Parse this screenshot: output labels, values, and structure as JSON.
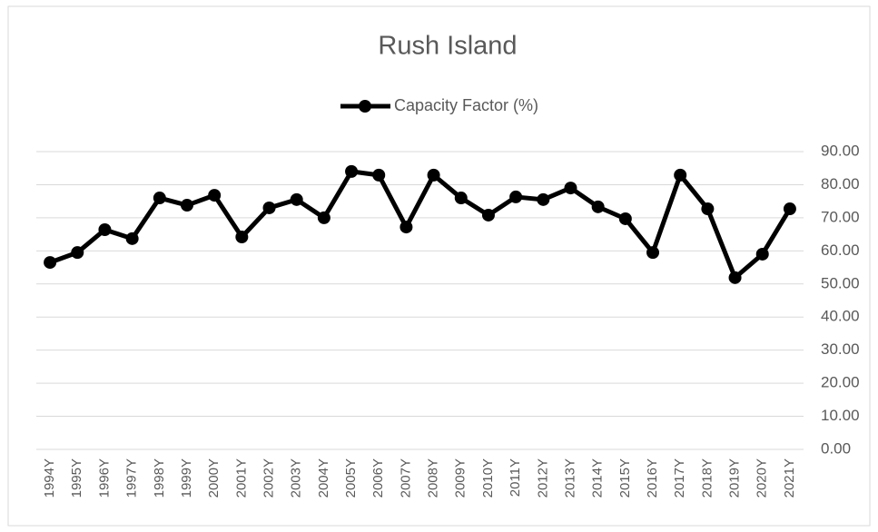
{
  "chart_data": {
    "type": "line",
    "title": "Rush Island",
    "categories": [
      "1994Y",
      "1995Y",
      "1996Y",
      "1997Y",
      "1998Y",
      "1999Y",
      "2000Y",
      "2001Y",
      "2002Y",
      "2003Y",
      "2004Y",
      "2005Y",
      "2006Y",
      "2007Y",
      "2008Y",
      "2009Y",
      "2010Y",
      "2011Y",
      "2012Y",
      "2013Y",
      "2014Y",
      "2015Y",
      "2016Y",
      "2017Y",
      "2018Y",
      "2019Y",
      "2020Y",
      "2021Y"
    ],
    "series": [
      {
        "name": "Capacity Factor (%)",
        "color": "#000000",
        "values": [
          56.5,
          59.5,
          66.4,
          63.7,
          76,
          73.8,
          76.8,
          64.2,
          73,
          75.5,
          70,
          84,
          82.9,
          67.2,
          82.9,
          76,
          70.8,
          76.3,
          75.5,
          79,
          73.3,
          69.7,
          59.5,
          82.9,
          72.7,
          51.9,
          59,
          72.7
        ]
      }
    ],
    "ylim": [
      0,
      90
    ],
    "yticks": [
      {
        "value": 0,
        "label": "0.00"
      },
      {
        "value": 10,
        "label": "10.00"
      },
      {
        "value": 20,
        "label": "20.00"
      },
      {
        "value": 30,
        "label": "30.00"
      },
      {
        "value": 40,
        "label": "40.00"
      },
      {
        "value": 50,
        "label": "50.00"
      },
      {
        "value": 60,
        "label": "60.00"
      },
      {
        "value": 70,
        "label": "70.00"
      },
      {
        "value": 80,
        "label": "80.00"
      },
      {
        "value": 90,
        "label": "90.00"
      }
    ],
    "grid": true,
    "legend": "top"
  }
}
